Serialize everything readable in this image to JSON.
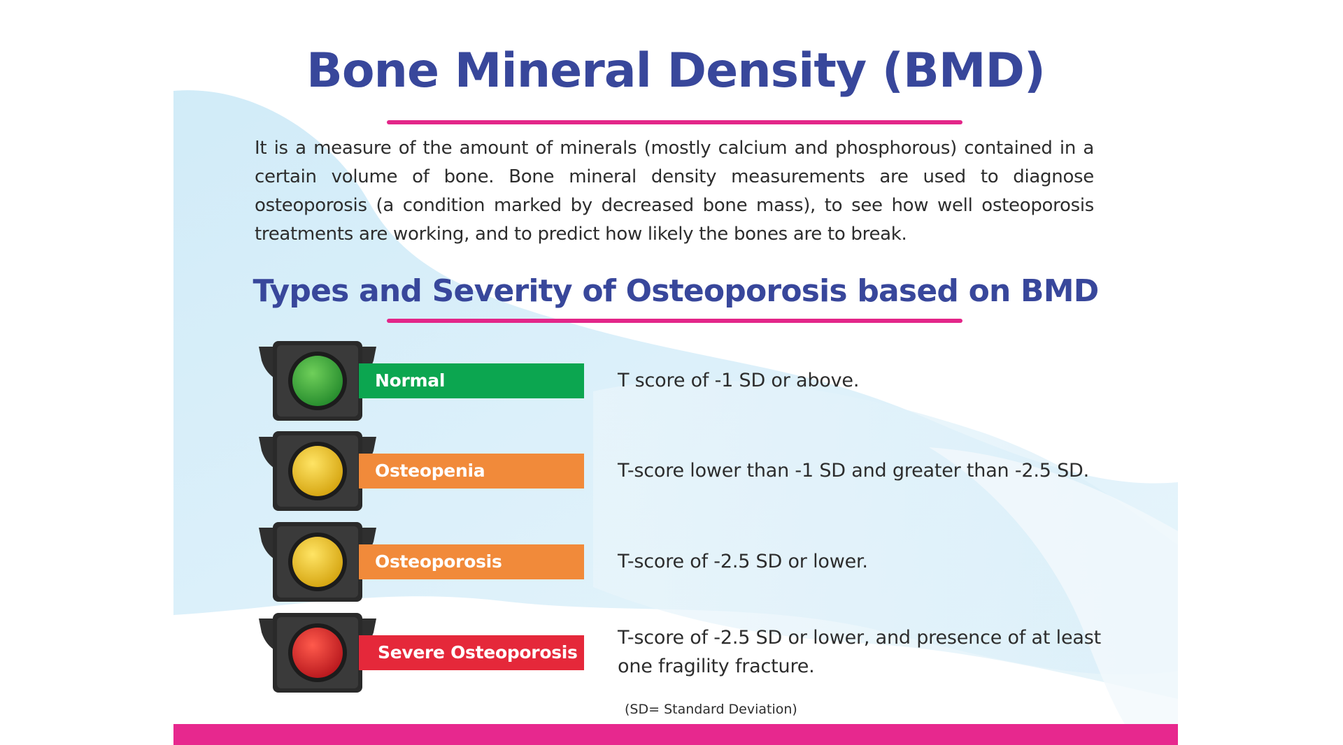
{
  "title": "Bone Mineral Density (BMD)",
  "intro": "It is a measure of the amount of minerals (mostly calcium and phosphorous) contained in a certain volume of bone. Bone mineral density measurements are used to diagnose osteoporosis (a condition marked by decreased bone mass), to see how well osteoporosis treatments are working, and to predict how likely the bones are to break.",
  "subtitle": "Types and Severity of Osteoporosis based on BMD",
  "levels": [
    {
      "label": "Normal",
      "description": "T score of -1 SD or above.",
      "light_color": "#3aa544",
      "band_color": "#0ca650"
    },
    {
      "label": "Osteopenia",
      "description": "T-score lower than -1 SD and greater than -2.5 SD.",
      "light_color": "#efc21e",
      "band_color": "#f18a3a"
    },
    {
      "label": "Osteoporosis",
      "description": "T-score of -2.5 SD or lower.",
      "light_color": "#efc21e",
      "band_color": "#f18a3a"
    },
    {
      "label": "Severe Osteoporosis",
      "description": "T-score of -2.5 SD or lower, and presence of at least one fragility fracture.",
      "light_color": "#e0242a",
      "band_color": "#e5283a"
    }
  ],
  "footnote": "(SD= Standard Deviation)",
  "colors": {
    "heading": "#38479b",
    "accent": "#e7288e"
  },
  "icons": [
    "traffic-light-green-icon",
    "traffic-light-yellow-icon",
    "traffic-light-yellow-icon",
    "traffic-light-red-icon"
  ]
}
